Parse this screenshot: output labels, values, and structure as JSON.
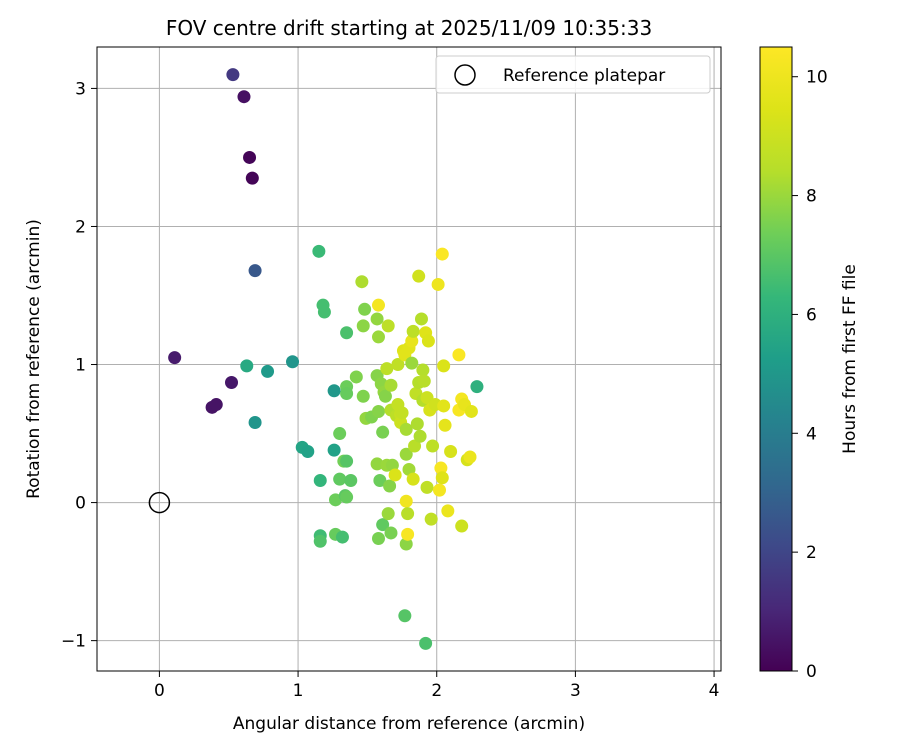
{
  "chart_data": {
    "type": "scatter",
    "title": "FOV centre drift starting at 2025/11/09 10:35:33",
    "xlabel": "Angular distance from reference (arcmin)",
    "ylabel": "Rotation from reference (arcmin)",
    "xlim": [
      -0.45,
      4.05
    ],
    "ylim": [
      -1.22,
      3.3
    ],
    "x_ticks": [
      0,
      1,
      2,
      3,
      4
    ],
    "x_tick_labels": [
      "0",
      "1",
      "2",
      "3",
      "4"
    ],
    "y_ticks": [
      -1,
      0,
      1,
      2,
      3
    ],
    "y_tick_labels": [
      "−1",
      "0",
      "1",
      "2",
      "3"
    ],
    "grid": true,
    "legend": {
      "position": "top-right",
      "entries": [
        "Reference platepar"
      ]
    },
    "reference_point": {
      "x": 0,
      "y": 0,
      "label": "Reference platepar"
    },
    "colorbar": {
      "label": "Hours from first FF file",
      "range": [
        0,
        10.5
      ],
      "ticks": [
        0,
        2,
        4,
        6,
        8,
        10
      ],
      "tick_labels": [
        "0",
        "2",
        "4",
        "6",
        "8",
        "10"
      ],
      "colormap": "viridis"
    },
    "points": [
      {
        "x": 0.53,
        "y": 3.1,
        "c": 1.6
      },
      {
        "x": 0.61,
        "y": 2.94,
        "c": 0.4
      },
      {
        "x": 0.65,
        "y": 2.5,
        "c": 0.1
      },
      {
        "x": 0.67,
        "y": 2.35,
        "c": 0.1
      },
      {
        "x": 0.69,
        "y": 1.68,
        "c": 2.6
      },
      {
        "x": 0.11,
        "y": 1.05,
        "c": 0.7
      },
      {
        "x": 0.52,
        "y": 0.87,
        "c": 0.6
      },
      {
        "x": 0.38,
        "y": 0.69,
        "c": 0.5
      },
      {
        "x": 0.41,
        "y": 0.71,
        "c": 0.5
      },
      {
        "x": 0.63,
        "y": 0.99,
        "c": 5.7
      },
      {
        "x": 0.78,
        "y": 0.95,
        "c": 5.1
      },
      {
        "x": 0.69,
        "y": 0.58,
        "c": 4.9
      },
      {
        "x": 0.96,
        "y": 1.02,
        "c": 4.9
      },
      {
        "x": 1.03,
        "y": 0.4,
        "c": 5.5
      },
      {
        "x": 1.07,
        "y": 0.37,
        "c": 5.4
      },
      {
        "x": 1.15,
        "y": 1.82,
        "c": 6.4
      },
      {
        "x": 1.18,
        "y": 1.43,
        "c": 6.6
      },
      {
        "x": 1.19,
        "y": 1.38,
        "c": 6.6
      },
      {
        "x": 1.26,
        "y": 0.81,
        "c": 5.0
      },
      {
        "x": 1.26,
        "y": 0.38,
        "c": 5.4
      },
      {
        "x": 1.16,
        "y": 0.16,
        "c": 6.2
      },
      {
        "x": 1.16,
        "y": -0.24,
        "c": 6.5
      },
      {
        "x": 1.16,
        "y": -0.28,
        "c": 6.8
      },
      {
        "x": 1.27,
        "y": -0.23,
        "c": 7.2
      },
      {
        "x": 1.32,
        "y": -0.25,
        "c": 6.6
      },
      {
        "x": 1.27,
        "y": 0.02,
        "c": 7.3
      },
      {
        "x": 1.3,
        "y": 0.17,
        "c": 7.1
      },
      {
        "x": 1.3,
        "y": 0.5,
        "c": 7.3
      },
      {
        "x": 1.33,
        "y": 0.3,
        "c": 7.4
      },
      {
        "x": 1.35,
        "y": 0.3,
        "c": 6.9
      },
      {
        "x": 1.34,
        "y": 0.05,
        "c": 7.0
      },
      {
        "x": 1.35,
        "y": 0.04,
        "c": 7.2
      },
      {
        "x": 1.38,
        "y": 0.16,
        "c": 7.0
      },
      {
        "x": 1.35,
        "y": 1.23,
        "c": 6.7
      },
      {
        "x": 1.35,
        "y": 0.84,
        "c": 7.3
      },
      {
        "x": 1.35,
        "y": 0.79,
        "c": 7.2
      },
      {
        "x": 1.42,
        "y": 0.91,
        "c": 7.6
      },
      {
        "x": 1.46,
        "y": 1.6,
        "c": 8.3
      },
      {
        "x": 1.48,
        "y": 1.4,
        "c": 7.6
      },
      {
        "x": 1.47,
        "y": 1.28,
        "c": 7.8
      },
      {
        "x": 1.47,
        "y": 0.77,
        "c": 7.6
      },
      {
        "x": 1.49,
        "y": 0.61,
        "c": 7.9
      },
      {
        "x": 1.53,
        "y": 0.62,
        "c": 7.6
      },
      {
        "x": 1.57,
        "y": 1.33,
        "c": 7.9
      },
      {
        "x": 1.58,
        "y": 1.43,
        "c": 10.2
      },
      {
        "x": 1.58,
        "y": 1.2,
        "c": 8.0
      },
      {
        "x": 1.57,
        "y": 0.92,
        "c": 7.7
      },
      {
        "x": 1.6,
        "y": 0.86,
        "c": 7.8
      },
      {
        "x": 1.58,
        "y": 0.66,
        "c": 7.7
      },
      {
        "x": 1.57,
        "y": 0.28,
        "c": 7.9
      },
      {
        "x": 1.59,
        "y": 0.16,
        "c": 7.3
      },
      {
        "x": 1.58,
        "y": -0.26,
        "c": 7.5
      },
      {
        "x": 1.61,
        "y": 0.51,
        "c": 7.5
      },
      {
        "x": 1.62,
        "y": 0.8,
        "c": 7.9
      },
      {
        "x": 1.61,
        "y": -0.16,
        "c": 7.1
      },
      {
        "x": 1.63,
        "y": 0.77,
        "c": 7.7
      },
      {
        "x": 1.64,
        "y": 0.97,
        "c": 8.6
      },
      {
        "x": 1.64,
        "y": 0.27,
        "c": 8.0
      },
      {
        "x": 1.65,
        "y": 1.28,
        "c": 8.6
      },
      {
        "x": 1.65,
        "y": -0.08,
        "c": 8.0
      },
      {
        "x": 1.66,
        "y": 0.12,
        "c": 7.7
      },
      {
        "x": 1.67,
        "y": -0.22,
        "c": 7.5
      },
      {
        "x": 1.67,
        "y": 0.67,
        "c": 8.4
      },
      {
        "x": 1.67,
        "y": 0.85,
        "c": 8.2
      },
      {
        "x": 1.68,
        "y": 0.27,
        "c": 7.9
      },
      {
        "x": 1.7,
        "y": 0.2,
        "c": 9.4
      },
      {
        "x": 1.71,
        "y": 0.63,
        "c": 8.6
      },
      {
        "x": 1.72,
        "y": 1.0,
        "c": 8.7
      },
      {
        "x": 1.72,
        "y": 0.71,
        "c": 8.8
      },
      {
        "x": 1.74,
        "y": 0.64,
        "c": 8.9
      },
      {
        "x": 1.74,
        "y": 0.58,
        "c": 9.0
      },
      {
        "x": 1.75,
        "y": 0.65,
        "c": 8.8
      },
      {
        "x": 1.76,
        "y": 1.1,
        "c": 9.5
      },
      {
        "x": 1.77,
        "y": 1.07,
        "c": 9.6
      },
      {
        "x": 1.78,
        "y": 0.53,
        "c": 8.2
      },
      {
        "x": 1.78,
        "y": 0.35,
        "c": 8.0
      },
      {
        "x": 1.78,
        "y": -0.3,
        "c": 7.8
      },
      {
        "x": 1.78,
        "y": 0.01,
        "c": 10.1
      },
      {
        "x": 1.79,
        "y": -0.23,
        "c": 10.3
      },
      {
        "x": 1.79,
        "y": -0.08,
        "c": 8.5
      },
      {
        "x": 1.77,
        "y": -0.82,
        "c": 6.9
      },
      {
        "x": 1.8,
        "y": 1.12,
        "c": 9.6
      },
      {
        "x": 1.8,
        "y": 0.24,
        "c": 8.1
      },
      {
        "x": 1.82,
        "y": 1.01,
        "c": 8.0
      },
      {
        "x": 1.82,
        "y": 1.17,
        "c": 9.8
      },
      {
        "x": 1.83,
        "y": 1.24,
        "c": 8.6
      },
      {
        "x": 1.83,
        "y": 0.17,
        "c": 9.3
      },
      {
        "x": 1.84,
        "y": 0.41,
        "c": 8.5
      },
      {
        "x": 1.85,
        "y": 0.79,
        "c": 8.7
      },
      {
        "x": 1.86,
        "y": 0.57,
        "c": 8.3
      },
      {
        "x": 1.87,
        "y": 1.64,
        "c": 9.1
      },
      {
        "x": 1.87,
        "y": 0.87,
        "c": 8.4
      },
      {
        "x": 1.88,
        "y": 0.48,
        "c": 8.3
      },
      {
        "x": 1.89,
        "y": 1.33,
        "c": 8.4
      },
      {
        "x": 1.9,
        "y": 0.96,
        "c": 8.4
      },
      {
        "x": 1.9,
        "y": 0.74,
        "c": 8.4
      },
      {
        "x": 1.91,
        "y": 0.88,
        "c": 8.5
      },
      {
        "x": 1.92,
        "y": -1.02,
        "c": 6.7
      },
      {
        "x": 1.92,
        "y": 1.23,
        "c": 9.5
      },
      {
        "x": 1.93,
        "y": 0.11,
        "c": 8.7
      },
      {
        "x": 1.93,
        "y": 0.76,
        "c": 9.0
      },
      {
        "x": 1.94,
        "y": 1.17,
        "c": 9.4
      },
      {
        "x": 1.95,
        "y": 0.67,
        "c": 9.3
      },
      {
        "x": 1.96,
        "y": -0.12,
        "c": 8.7
      },
      {
        "x": 1.97,
        "y": 0.41,
        "c": 8.6
      },
      {
        "x": 1.99,
        "y": 0.71,
        "c": 9.1
      },
      {
        "x": 2.01,
        "y": 1.58,
        "c": 10.0
      },
      {
        "x": 2.02,
        "y": 0.09,
        "c": 10.2
      },
      {
        "x": 2.03,
        "y": 0.25,
        "c": 10.3
      },
      {
        "x": 2.04,
        "y": 1.8,
        "c": 10.4
      },
      {
        "x": 2.04,
        "y": 0.18,
        "c": 9.5
      },
      {
        "x": 2.05,
        "y": 0.99,
        "c": 9.4
      },
      {
        "x": 2.05,
        "y": 0.7,
        "c": 9.6
      },
      {
        "x": 2.06,
        "y": 0.56,
        "c": 9.7
      },
      {
        "x": 2.08,
        "y": -0.06,
        "c": 9.9
      },
      {
        "x": 2.1,
        "y": 0.37,
        "c": 9.3
      },
      {
        "x": 2.16,
        "y": 1.07,
        "c": 10.4
      },
      {
        "x": 2.16,
        "y": 0.67,
        "c": 10.3
      },
      {
        "x": 2.18,
        "y": 0.75,
        "c": 10.2
      },
      {
        "x": 2.18,
        "y": -0.17,
        "c": 9.0
      },
      {
        "x": 2.2,
        "y": 0.71,
        "c": 9.8
      },
      {
        "x": 2.22,
        "y": 0.31,
        "c": 9.3
      },
      {
        "x": 2.24,
        "y": 0.33,
        "c": 9.9
      },
      {
        "x": 2.25,
        "y": 0.66,
        "c": 9.6
      },
      {
        "x": 2.29,
        "y": 0.84,
        "c": 6.0
      }
    ]
  }
}
